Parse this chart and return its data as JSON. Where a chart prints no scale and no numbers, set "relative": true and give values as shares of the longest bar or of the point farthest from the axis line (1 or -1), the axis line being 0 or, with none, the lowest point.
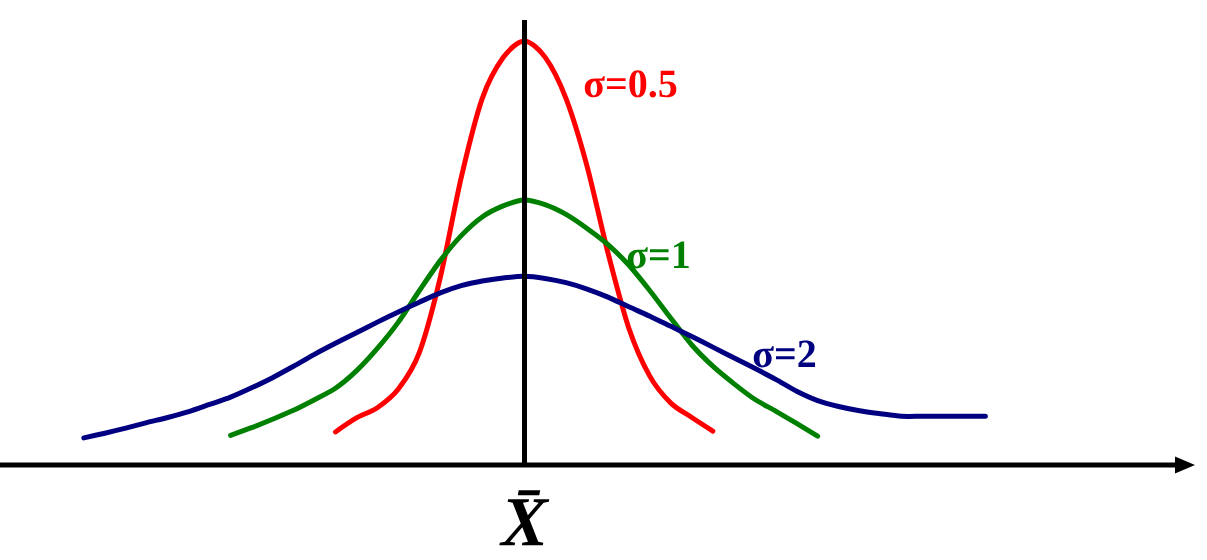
{
  "chart_data": {
    "type": "line",
    "relative": true,
    "categories": [
      null,
      null,
      null,
      null,
      null,
      null,
      null,
      null,
      null,
      null,
      null,
      null,
      null,
      null,
      null,
      null,
      null,
      null,
      null,
      null,
      null,
      null,
      null,
      null,
      null,
      null,
      null,
      null,
      null,
      null,
      null,
      null,
      null,
      null,
      null,
      null,
      null,
      null,
      null,
      null,
      null,
      null,
      null,
      null,
      null,
      null,
      null,
      null,
      null,
      null,
      null,
      null,
      null,
      null,
      null,
      null,
      null,
      null
    ],
    "series": [
      {
        "name": "σ=0.5",
        "color": "#ff0000",
        "values": [
          null,
          null,
          null,
          null,
          null,
          null,
          null,
          null,
          null,
          null,
          null,
          null,
          null,
          null,
          null,
          null,
          0.078,
          0.111,
          0.135,
          0.179,
          0.265,
          0.442,
          0.678,
          0.864,
          0.961,
          1,
          0.962,
          0.864,
          0.705,
          0.5,
          0.322,
          0.209,
          0.146,
          0.112,
          0.08,
          null,
          null,
          null,
          null,
          null,
          null,
          null,
          null,
          null,
          null,
          null,
          null,
          null,
          null,
          null,
          null,
          null,
          null,
          null,
          null,
          null,
          null,
          null
        ]
      },
      {
        "name": "σ=1",
        "color": "#008000",
        "values": [
          null,
          null,
          null,
          null,
          null,
          null,
          null,
          null,
          null,
          null,
          null,
          0.07,
          0.088,
          0.108,
          0.129,
          0.154,
          0.181,
          0.222,
          0.275,
          0.337,
          0.411,
          0.482,
          0.541,
          0.585,
          0.611,
          0.625,
          0.614,
          0.591,
          0.558,
          0.52,
          0.471,
          0.411,
          0.346,
          0.283,
          0.233,
          0.192,
          0.155,
          0.127,
          0.098,
          0.068,
          null,
          null,
          null,
          null,
          null,
          null,
          null,
          null,
          null,
          null,
          null,
          null,
          null,
          null,
          null,
          null,
          null,
          null
        ]
      },
      {
        "name": "σ=2",
        "color": "#000080",
        "values": [
          null,
          null,
          null,
          null,
          0.064,
          0.075,
          0.087,
          0.1,
          0.112,
          0.126,
          0.143,
          0.16,
          0.182,
          0.206,
          0.233,
          0.261,
          0.287,
          0.312,
          0.337,
          0.361,
          0.384,
          0.406,
          0.423,
          0.434,
          0.441,
          0.445,
          0.44,
          0.43,
          0.415,
          0.396,
          0.373,
          0.351,
          0.327,
          0.303,
          0.278,
          0.253,
          0.228,
          0.202,
          0.174,
          0.152,
          0.138,
          0.128,
          0.121,
          0.115,
          0.115,
          0.115,
          0.115,
          0.115,
          null,
          null,
          null,
          null,
          null,
          null,
          null,
          null,
          null,
          null
        ]
      }
    ],
    "annotations": [
      "X̄"
    ]
  }
}
